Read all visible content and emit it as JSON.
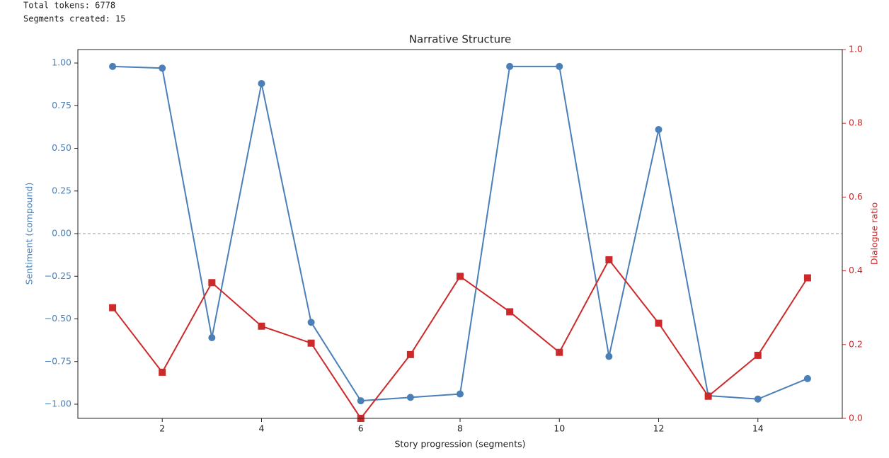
{
  "output_lines": [
    "Total tokens: 6778",
    "Segments created: 15"
  ],
  "chart_data": {
    "type": "line",
    "title": "Narrative Structure",
    "xlabel": "Story progression (segments)",
    "ylabel": "Sentiment (compound)",
    "y2label": "Dialogue ratio",
    "x": [
      1,
      2,
      3,
      4,
      5,
      6,
      7,
      8,
      9,
      10,
      11,
      12,
      13,
      14,
      15
    ],
    "series": [
      {
        "name": "Sentiment (compound)",
        "color": "#4a7fb7",
        "marker": "circle",
        "axis": "y",
        "values": [
          0.98,
          0.97,
          -0.61,
          0.88,
          -0.52,
          -0.98,
          -0.96,
          -0.94,
          0.98,
          0.98,
          -0.72,
          0.61,
          -0.95,
          -0.97,
          -0.85
        ]
      },
      {
        "name": "Dialogue ratio",
        "color": "#cc2a2a",
        "marker": "square",
        "axis": "y2",
        "values": [
          0.3,
          0.125,
          0.368,
          0.25,
          0.204,
          0.0,
          0.173,
          0.385,
          0.289,
          0.179,
          0.43,
          0.258,
          0.06,
          0.171,
          0.381
        ]
      }
    ],
    "xlim": [
      0.3,
      15.7
    ],
    "xticks": [
      2,
      4,
      6,
      8,
      10,
      12,
      14
    ],
    "ylim": [
      -1.083,
      1.079
    ],
    "yticks": [
      {
        "value": -1,
        "label": "−1.00"
      },
      {
        "value": -0.75,
        "label": "−0.75"
      },
      {
        "value": -0.5,
        "label": "−0.50"
      },
      {
        "value": -0.25,
        "label": "−0.25"
      },
      {
        "value": 0,
        "label": "0.00"
      },
      0.25,
      {
        "value": 0.5,
        "label": "0.50"
      },
      0.75,
      {
        "value": 1,
        "label": "1.00"
      }
    ],
    "y2lim": [
      0,
      1
    ],
    "y2ticks": [
      {
        "value": 0,
        "label": "0.0"
      },
      0.2,
      0.4,
      0.6,
      0.8,
      {
        "value": 1,
        "label": "1.0"
      }
    ],
    "hline": 0,
    "grid": false
  }
}
